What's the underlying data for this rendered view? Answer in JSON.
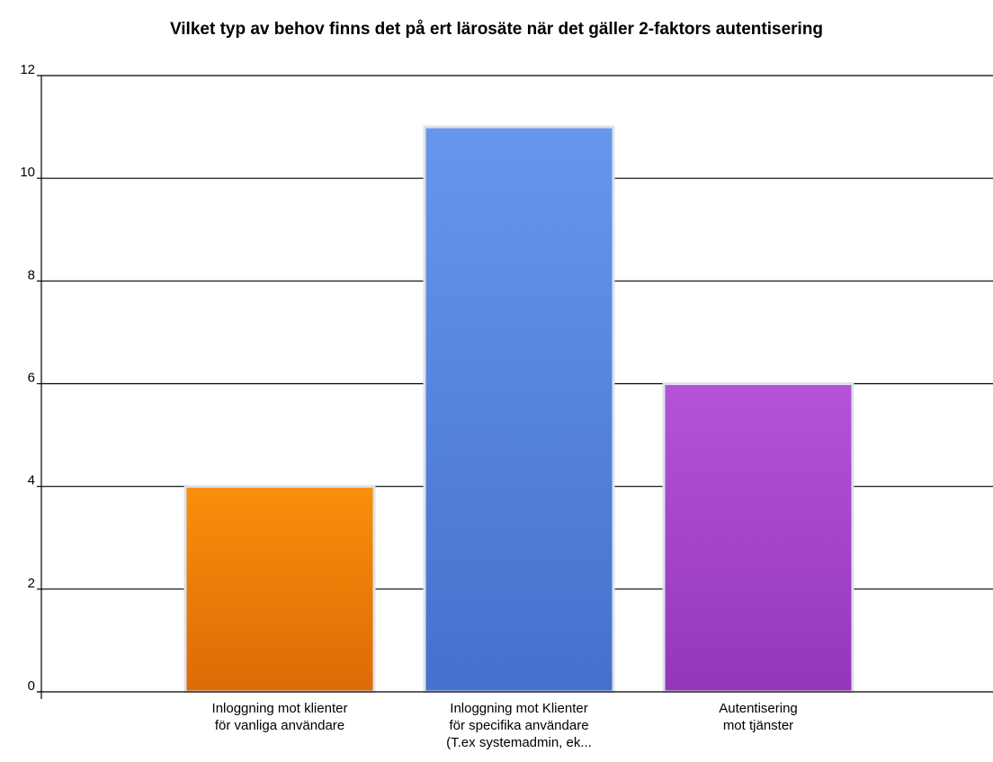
{
  "chart_data": {
    "type": "bar",
    "title": "Vilket typ av behov finns det på ert lärosäte när det gäller 2-faktors autentisering",
    "categories": [
      [
        "Inloggning mot klienter",
        "för vanliga användare"
      ],
      [
        "Inloggning mot Klienter",
        "för specifika användare",
        "(T.ex systemadmin, ek..."
      ],
      [
        "Autentisering",
        "mot tjänster"
      ]
    ],
    "values": [
      4,
      11,
      6
    ],
    "ylim": [
      0,
      12
    ],
    "yticks": [
      0,
      2,
      4,
      6,
      8,
      10,
      12
    ],
    "grid": true,
    "legend": "none",
    "colors": [
      {
        "top": "#f98f0a",
        "bottom": "#de6a07"
      },
      {
        "top": "#6797ec",
        "bottom": "#4471cc"
      },
      {
        "top": "#b553d8",
        "bottom": "#9536ba"
      }
    ],
    "bar_border": "#dce3ea"
  }
}
